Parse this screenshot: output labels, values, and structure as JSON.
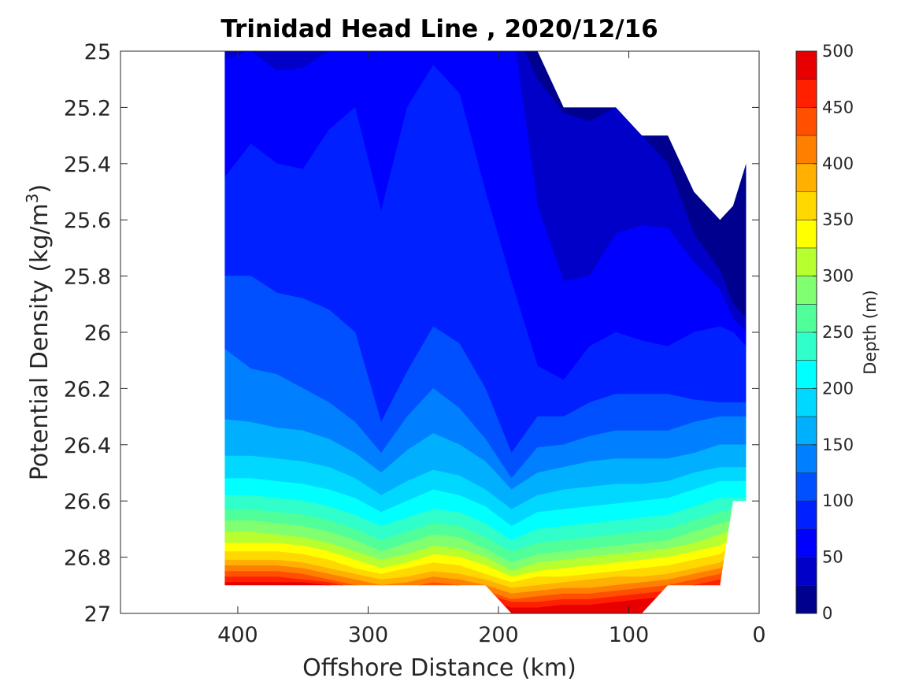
{
  "chart_data": {
    "type": "contourf",
    "title": "Trinidad Head Line , 2020/12/16",
    "xlabel": "Offshore Distance (km)",
    "ylabel_main": "Potential Density (kg/m",
    "ylabel_sup": "3",
    "ylabel_close": ")",
    "colorbar_label": "Depth (m)",
    "xlim": [
      490,
      0
    ],
    "x_reversed": true,
    "ylim": [
      25,
      27
    ],
    "y_reversed": true,
    "xticks": [
      400,
      300,
      200,
      100,
      0
    ],
    "xtick_labels": [
      "400",
      "300",
      "200",
      "100",
      "0"
    ],
    "yticks": [
      25,
      25.2,
      25.4,
      25.6,
      25.8,
      26,
      26.2,
      26.4,
      26.6,
      26.8,
      27
    ],
    "ytick_labels": [
      "25",
      "25.2",
      "25.4",
      "25.6",
      "25.8",
      "26",
      "26.2",
      "26.4",
      "26.6",
      "26.8",
      "27"
    ],
    "colorbar": {
      "limits": [
        0,
        500
      ],
      "ticks": [
        0,
        50,
        100,
        150,
        200,
        250,
        300,
        350,
        400,
        450,
        500
      ],
      "tick_labels": [
        "0",
        "50",
        "100",
        "150",
        "200",
        "250",
        "300",
        "350",
        "400",
        "450",
        "500"
      ],
      "levels": [
        0,
        25,
        50,
        75,
        100,
        125,
        150,
        175,
        200,
        225,
        250,
        275,
        300,
        325,
        350,
        375,
        400,
        425,
        450,
        475,
        500
      ],
      "colormap": "jet",
      "colors": [
        "#00008f",
        "#0000c8",
        "#0000ff",
        "#0020ff",
        "#0050ff",
        "#0080ff",
        "#00b0ff",
        "#00d8ff",
        "#00ffff",
        "#30ffcc",
        "#50ff9a",
        "#80ff70",
        "#b8ff30",
        "#ffff00",
        "#ffd800",
        "#ffb000",
        "#ff8000",
        "#ff5000",
        "#ff2000",
        "#e80000",
        "#b00000"
      ]
    },
    "x": [
      410,
      390,
      370,
      350,
      330,
      310,
      290,
      270,
      250,
      230,
      210,
      190,
      170,
      150,
      130,
      110,
      90,
      70,
      50,
      30,
      20,
      10
    ],
    "bottom": [
      26.9,
      26.9,
      26.9,
      26.9,
      26.9,
      26.9,
      26.9,
      26.9,
      26.9,
      26.9,
      26.9,
      27.0,
      27.0,
      27.0,
      27.0,
      27.0,
      27.0,
      26.9,
      26.9,
      26.9,
      26.6,
      26.6
    ],
    "top": [
      25.0,
      25.0,
      25.0,
      25.0,
      25.0,
      25.0,
      25.0,
      25.0,
      25.0,
      25.0,
      25.0,
      25.0,
      25.0,
      25.2,
      25.2,
      25.2,
      25.3,
      25.3,
      25.5,
      25.6,
      25.55,
      25.4
    ],
    "isopycnals": [
      {
        "depth": 25,
        "d": [
          24.9,
          24.9,
          24.9,
          24.9,
          24.9,
          24.9,
          25.15,
          24.9,
          24.9,
          24.9,
          24.9,
          24.9,
          25.1,
          25.22,
          25.25,
          25.2,
          25.3,
          25.4,
          25.65,
          25.78,
          25.9,
          25.95
        ]
      },
      {
        "depth": 50,
        "d": [
          25.03,
          25.0,
          25.07,
          25.06,
          25.0,
          25.0,
          24.95,
          25.0,
          25.0,
          25.0,
          24.95,
          24.9,
          25.55,
          25.82,
          25.8,
          25.65,
          25.62,
          25.63,
          25.75,
          25.85,
          25.95,
          26.0
        ]
      },
      {
        "depth": 75,
        "d": [
          25.45,
          25.33,
          25.4,
          25.42,
          25.28,
          25.2,
          25.57,
          25.2,
          25.05,
          25.15,
          25.5,
          25.82,
          26.12,
          26.17,
          26.05,
          26.0,
          26.03,
          26.05,
          26.0,
          25.98,
          26.0,
          26.05
        ]
      },
      {
        "depth": 100,
        "d": [
          25.8,
          25.8,
          25.86,
          25.88,
          25.92,
          26.0,
          26.32,
          26.14,
          25.98,
          26.04,
          26.2,
          26.43,
          26.3,
          26.3,
          26.25,
          26.22,
          26.22,
          26.22,
          26.24,
          26.25,
          26.25,
          26.25
        ]
      },
      {
        "depth": 125,
        "d": [
          26.06,
          26.13,
          26.15,
          26.2,
          26.25,
          26.32,
          26.43,
          26.3,
          26.2,
          26.27,
          26.38,
          26.52,
          26.41,
          26.4,
          26.37,
          26.35,
          26.35,
          26.35,
          26.32,
          26.3,
          26.3,
          26.3
        ]
      },
      {
        "depth": 150,
        "d": [
          26.31,
          26.32,
          26.34,
          26.35,
          26.38,
          26.43,
          26.5,
          26.42,
          26.36,
          26.4,
          26.46,
          26.56,
          26.5,
          26.48,
          26.46,
          26.45,
          26.45,
          26.45,
          26.43,
          26.4,
          26.4,
          26.4
        ]
      },
      {
        "depth": 175,
        "d": [
          26.44,
          26.44,
          26.45,
          26.46,
          26.48,
          26.52,
          26.58,
          26.53,
          26.49,
          26.51,
          26.56,
          26.63,
          26.58,
          26.56,
          26.55,
          26.54,
          26.54,
          26.53,
          26.5,
          26.48,
          26.48,
          26.48
        ]
      },
      {
        "depth": 200,
        "d": [
          26.52,
          26.52,
          26.53,
          26.54,
          26.56,
          26.59,
          26.64,
          26.6,
          26.56,
          26.58,
          26.62,
          26.69,
          26.64,
          26.63,
          26.62,
          26.61,
          26.6,
          26.59,
          26.56,
          26.53,
          26.53,
          26.53
        ]
      },
      {
        "depth": 225,
        "d": [
          26.58,
          26.58,
          26.59,
          26.6,
          26.62,
          26.65,
          26.69,
          26.66,
          26.63,
          26.64,
          26.68,
          26.74,
          26.7,
          26.69,
          26.68,
          26.67,
          26.66,
          26.65,
          26.62,
          26.59,
          26.59,
          26.59
        ]
      },
      {
        "depth": 250,
        "d": [
          26.63,
          26.63,
          26.64,
          26.65,
          26.67,
          26.7,
          26.74,
          26.71,
          26.68,
          26.69,
          26.73,
          26.78,
          26.75,
          26.74,
          26.73,
          26.72,
          26.71,
          26.7,
          26.67,
          26.64,
          26.63,
          26.63
        ]
      },
      {
        "depth": 275,
        "d": [
          26.67,
          26.67,
          26.68,
          26.69,
          26.71,
          26.74,
          26.78,
          26.75,
          26.72,
          26.73,
          26.77,
          26.82,
          26.79,
          26.78,
          26.77,
          26.76,
          26.75,
          26.74,
          26.71,
          26.68,
          26.67,
          26.66
        ]
      },
      {
        "depth": 300,
        "d": [
          26.71,
          26.71,
          26.72,
          26.73,
          26.75,
          26.78,
          26.81,
          26.79,
          26.76,
          26.77,
          26.8,
          26.85,
          26.82,
          26.81,
          26.8,
          26.79,
          26.78,
          26.77,
          26.75,
          26.72,
          26.7,
          26.69
        ]
      },
      {
        "depth": 325,
        "d": [
          26.75,
          26.75,
          26.75,
          26.76,
          26.78,
          26.81,
          26.84,
          26.82,
          26.79,
          26.8,
          26.83,
          26.87,
          26.85,
          26.84,
          26.83,
          26.82,
          26.81,
          26.8,
          26.78,
          26.76,
          26.73,
          26.72
        ]
      },
      {
        "depth": 350,
        "d": [
          26.78,
          26.78,
          26.78,
          26.79,
          26.81,
          26.84,
          26.86,
          26.84,
          26.82,
          26.83,
          26.86,
          26.89,
          26.87,
          26.87,
          26.86,
          26.85,
          26.84,
          26.83,
          26.81,
          26.79,
          26.76,
          26.75
        ]
      },
      {
        "depth": 375,
        "d": [
          26.81,
          26.81,
          26.81,
          26.82,
          26.84,
          26.86,
          26.88,
          26.87,
          26.85,
          26.86,
          26.88,
          26.91,
          26.9,
          26.89,
          26.88,
          26.87,
          26.87,
          26.86,
          26.84,
          26.82,
          26.79,
          26.78
        ]
      },
      {
        "depth": 400,
        "d": [
          26.83,
          26.83,
          26.83,
          26.84,
          26.86,
          26.88,
          26.9,
          26.89,
          26.87,
          26.88,
          26.9,
          26.93,
          26.92,
          26.91,
          26.91,
          26.9,
          26.89,
          26.88,
          26.86,
          26.84,
          26.82,
          26.81
        ]
      },
      {
        "depth": 425,
        "d": [
          26.85,
          26.85,
          26.85,
          26.86,
          26.88,
          26.9,
          26.91,
          26.91,
          26.89,
          26.9,
          26.92,
          26.95,
          26.94,
          26.93,
          26.93,
          26.92,
          26.91,
          26.9,
          26.88,
          26.86,
          26.84,
          26.83
        ]
      },
      {
        "depth": 450,
        "d": [
          26.87,
          26.87,
          26.87,
          26.88,
          26.89,
          26.91,
          26.93,
          26.92,
          26.91,
          26.92,
          26.93,
          26.96,
          26.96,
          26.95,
          26.95,
          26.94,
          26.93,
          26.92,
          26.9,
          26.88,
          26.86,
          26.85
        ]
      },
      {
        "depth": 475,
        "d": [
          26.89,
          26.89,
          26.89,
          26.89,
          26.9,
          26.92,
          26.94,
          26.93,
          26.92,
          26.93,
          26.95,
          26.98,
          26.98,
          26.97,
          26.97,
          26.96,
          26.95,
          26.94,
          26.92,
          26.9,
          26.88,
          26.87
        ]
      }
    ]
  }
}
